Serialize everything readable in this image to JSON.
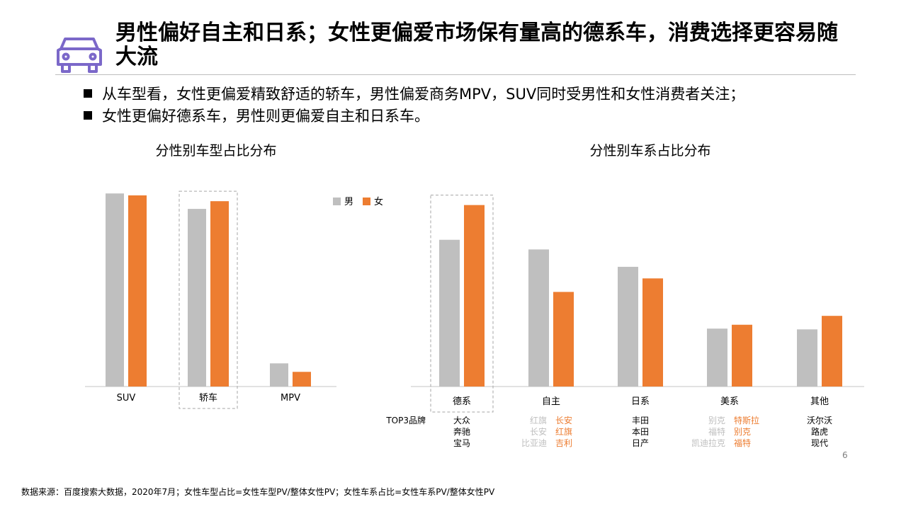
{
  "header": {
    "title": "男性偏好自主和日系；女性更偏爱市场保有量高的德系车，消费选择更容易随大流",
    "icon": "car-icon"
  },
  "bullets": [
    "从车型看，女性更偏爱精致舒适的轿车，男性偏爱商务MPV，SUV同时受男性和女性消费者关注；",
    "女性更偏好德系车，男性则更偏爱自主和日系车。"
  ],
  "colors": {
    "male": "#bfbfbf",
    "female": "#ed7d31",
    "highlight_frame": "#a6a6a6"
  },
  "chart_data": [
    {
      "type": "bar",
      "title": "分性别车型占比分布",
      "categories": [
        "SUV",
        "轿车",
        "MPV"
      ],
      "series": [
        {
          "name": "男",
          "values": [
            50,
            46,
            6
          ]
        },
        {
          "name": "女",
          "values": [
            49.5,
            48,
            3.8
          ]
        }
      ],
      "ylim": [
        0,
        55
      ],
      "grid": false,
      "legend": "top-right",
      "highlighted_category": "轿车"
    },
    {
      "type": "bar",
      "title": "分性别车系占比分布",
      "categories": [
        "德系",
        "自主",
        "日系",
        "美系",
        "其他"
      ],
      "series": [
        {
          "name": "男",
          "values": [
            38,
            35.5,
            31,
            15,
            14.8
          ]
        },
        {
          "name": "女",
          "values": [
            47,
            24.5,
            28,
            16,
            18.3
          ]
        }
      ],
      "ylim": [
        0,
        55
      ],
      "grid": false,
      "highlighted_category": "德系",
      "top3_label": "TOP3品牌",
      "top3": [
        {
          "male": [
            "大众",
            "奔驰",
            "宝马"
          ],
          "female": []
        },
        {
          "male": [
            "红旗",
            "长安",
            "比亚迪"
          ],
          "female": [
            "长安",
            "红旗",
            "吉利"
          ]
        },
        {
          "male": [
            "丰田",
            "本田",
            "日产"
          ],
          "female": []
        },
        {
          "male": [
            "别克",
            "福特",
            "凯迪拉克"
          ],
          "female": [
            "特斯拉",
            "别克",
            "福特"
          ]
        },
        {
          "male": [
            "沃尔沃",
            "路虎",
            "现代"
          ],
          "female": []
        }
      ]
    }
  ],
  "page_number": "6",
  "footer": "数据来源：百度搜索大数据，2020年7月；女性车型占比=女性车型PV/整体女性PV；女性车系占比=女性车系PV/整体女性PV"
}
